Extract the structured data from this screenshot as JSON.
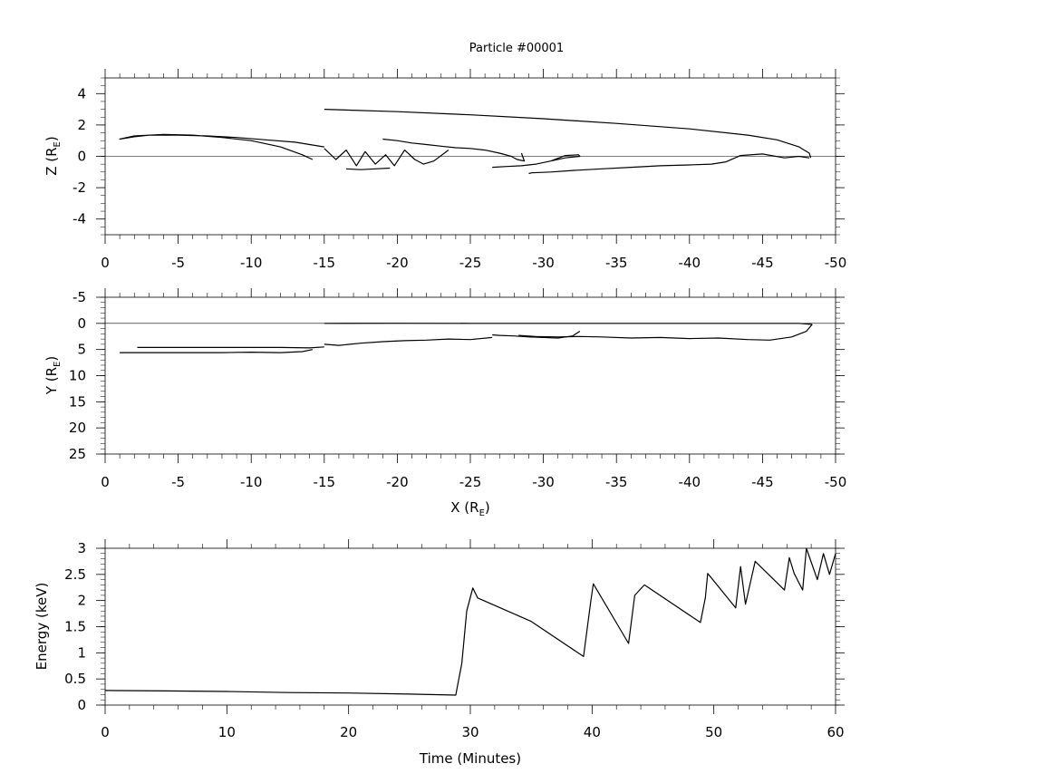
{
  "title": "Particle #00001",
  "chart_data": [
    {
      "type": "line",
      "panel": "z-vs-x",
      "xlabel": "X (R",
      "xlabel_sub": "E",
      "ylabel": "Z (R",
      "ylabel_sub": "E",
      "xlim": [
        0,
        -50
      ],
      "ylim": [
        -5,
        5
      ],
      "x_ticks": [
        "0",
        "-5",
        "-10",
        "-15",
        "-20",
        "-25",
        "-30",
        "-35",
        "-40",
        "-45",
        "-50"
      ],
      "y_ticks": [
        "4",
        "2",
        "0",
        "-2",
        "-4"
      ],
      "zero_line": true,
      "series": [
        {
          "x": [
            -15,
            -20,
            -25,
            -30,
            -35,
            -40,
            -44,
            -46,
            -47.5,
            -48.2,
            -48.3
          ],
          "y": [
            3.0,
            2.85,
            2.65,
            2.4,
            2.1,
            1.75,
            1.35,
            1.05,
            0.6,
            0.2,
            -0.1
          ]
        },
        {
          "x": [
            -48.2,
            -47.5,
            -46.5,
            -45,
            -43.5,
            -42.5,
            -41.5,
            -40,
            -38,
            -36,
            -34,
            -32,
            -30.5,
            -29.2,
            -29
          ],
          "y": [
            -0.1,
            0.0,
            -0.1,
            0.15,
            0.05,
            -0.35,
            -0.5,
            -0.55,
            -0.6,
            -0.7,
            -0.8,
            -0.9,
            -1.0,
            -1.05,
            -1.1
          ]
        },
        {
          "x": [
            -26.5,
            -27.5,
            -28.5,
            -29.5,
            -30.5,
            -31.5,
            -32.5,
            -32.4,
            -31.5,
            -30.5,
            -29.5,
            -28.5
          ],
          "y": [
            -0.7,
            -0.65,
            -0.6,
            -0.5,
            -0.3,
            -0.1,
            0.0,
            0.1,
            0.05,
            -0.3,
            -0.5,
            -0.6
          ]
        },
        {
          "x": [
            -19,
            -20,
            -21,
            -22,
            -23,
            -24,
            -25,
            -26,
            -27,
            -27.8,
            -28.2,
            -28.7,
            -28.5
          ],
          "y": [
            1.1,
            1.0,
            0.85,
            0.75,
            0.65,
            0.55,
            0.5,
            0.4,
            0.2,
            0.0,
            -0.2,
            -0.3,
            0.2
          ]
        },
        {
          "x": [
            -15,
            -15.8,
            -16.5,
            -17.2,
            -17.8,
            -18.5,
            -19.2,
            -19.8,
            -20.5,
            -21.2,
            -21.8,
            -22.5,
            -23.5
          ],
          "y": [
            0.5,
            -0.2,
            0.4,
            -0.6,
            0.3,
            -0.5,
            0.1,
            -0.6,
            0.4,
            -0.2,
            -0.5,
            -0.3,
            0.4
          ]
        },
        {
          "x": [
            -16.5,
            -17.5,
            -18.5,
            -19.5
          ],
          "y": [
            -0.8,
            -0.85,
            -0.8,
            -0.75
          ]
        },
        {
          "x": [
            -15,
            -14,
            -13,
            -11,
            -9,
            -7,
            -5,
            -3,
            -2,
            -1,
            -2,
            -4,
            -6,
            -8,
            -10,
            -12,
            -13.5,
            -14.2
          ],
          "y": [
            0.6,
            0.75,
            0.9,
            1.05,
            1.2,
            1.3,
            1.35,
            1.35,
            1.25,
            1.1,
            1.3,
            1.4,
            1.35,
            1.2,
            1.0,
            0.6,
            0.1,
            -0.2
          ]
        }
      ]
    },
    {
      "type": "line",
      "panel": "y-vs-x",
      "ylabel": "Y (R",
      "ylabel_sub": "E",
      "xlim": [
        0,
        -50
      ],
      "ylim": [
        -5,
        25
      ],
      "x_ticks": [
        "0",
        "-5",
        "-10",
        "-15",
        "-20",
        "-25",
        "-30",
        "-35",
        "-40",
        "-45",
        "-50"
      ],
      "y_ticks": [
        "-5",
        "0",
        "5",
        "10",
        "15",
        "20",
        "25"
      ],
      "zero_line": true,
      "series": [
        {
          "x": [
            -15,
            -20,
            -25,
            -30,
            -35,
            -40,
            -45,
            -47.5,
            -48.4
          ],
          "y": [
            0.0,
            -0.02,
            0.0,
            0.0,
            0.0,
            0.0,
            0.0,
            0.0,
            0.2
          ]
        },
        {
          "x": [
            -48.4,
            -48.0,
            -47.0,
            -45.5,
            -44,
            -42,
            -40,
            -38,
            -36,
            -34,
            -32.5,
            -31,
            -29.5,
            -28.3
          ],
          "y": [
            0.2,
            1.5,
            2.6,
            3.2,
            3.1,
            2.8,
            2.9,
            2.7,
            2.8,
            2.6,
            2.5,
            2.6,
            2.5,
            2.3
          ]
        },
        {
          "x": [
            -32.5,
            -32.0,
            -31,
            -30,
            -29,
            -28,
            -27,
            -26.5
          ],
          "y": [
            1.5,
            2.4,
            2.8,
            2.7,
            2.6,
            2.4,
            2.3,
            2.2
          ]
        },
        {
          "x": [
            -26.5,
            -25,
            -23.5,
            -22,
            -20.5,
            -19,
            -17.5,
            -16,
            -15
          ],
          "y": [
            2.7,
            3.1,
            3.0,
            3.2,
            3.3,
            3.5,
            3.8,
            4.2,
            4.0
          ]
        },
        {
          "x": [
            -15,
            -14,
            -12,
            -10,
            -8,
            -6,
            -4,
            -2.2
          ],
          "y": [
            4.5,
            4.7,
            4.6,
            4.6,
            4.6,
            4.6,
            4.6,
            4.6
          ]
        },
        {
          "x": [
            -14.2,
            -13.5,
            -12,
            -10,
            -8,
            -5,
            -3,
            -1
          ],
          "y": [
            5.0,
            5.4,
            5.6,
            5.5,
            5.6,
            5.6,
            5.6,
            5.6
          ]
        }
      ]
    },
    {
      "type": "line",
      "panel": "energy-vs-time",
      "xlabel": "Time (Minutes)",
      "ylabel": "Energy (keV)",
      "xlim": [
        0,
        60
      ],
      "ylim": [
        0,
        3
      ],
      "x_ticks": [
        "0",
        "10",
        "20",
        "30",
        "40",
        "50",
        "60"
      ],
      "y_ticks": [
        "3",
        "2.5",
        "2",
        "1.5",
        "1",
        "0.5",
        "0"
      ],
      "series": [
        {
          "x": [
            0,
            5,
            10,
            15,
            20,
            25,
            28.8,
            29.3,
            29.7,
            30.2,
            30.6,
            35,
            39.3,
            39.9,
            40.1,
            43.0,
            43.5,
            44.3,
            48.9,
            49.3,
            49.5,
            51.8,
            52.2,
            52.6,
            53.4,
            55.8,
            56.2,
            56.6,
            57.3,
            57.6,
            58.5,
            59,
            59.5,
            60
          ],
          "y": [
            0.28,
            0.27,
            0.26,
            0.24,
            0.23,
            0.21,
            0.19,
            0.8,
            1.8,
            2.24,
            2.05,
            1.6,
            0.93,
            2.0,
            2.32,
            1.18,
            2.1,
            2.3,
            1.58,
            2.05,
            2.52,
            1.86,
            2.65,
            1.93,
            2.75,
            2.2,
            2.82,
            2.52,
            2.2,
            3.0,
            2.4,
            2.9,
            2.5,
            2.9
          ]
        }
      ]
    }
  ]
}
